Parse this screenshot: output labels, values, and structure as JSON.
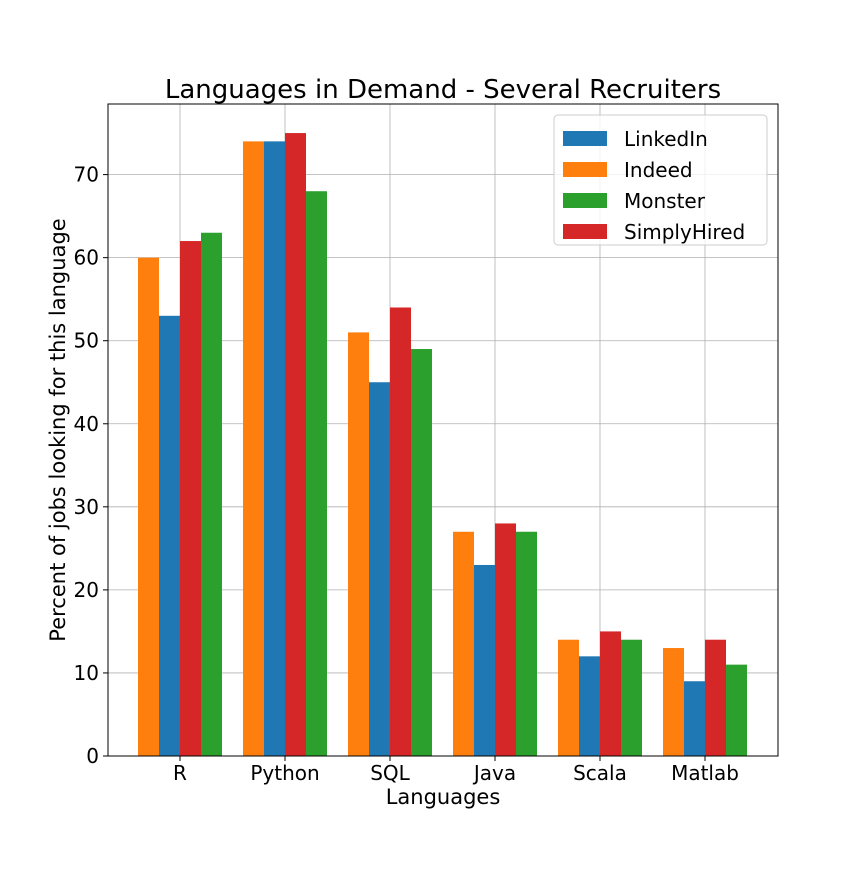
{
  "chart_data": {
    "type": "bar",
    "title": "Languages in Demand - Several Recruiters",
    "xlabel": "Languages",
    "ylabel": "Percent of jobs looking for this language",
    "categories": [
      "R",
      "Python",
      "SQL",
      "Java",
      "Scala",
      "Matlab"
    ],
    "series": [
      {
        "name": "Indeed",
        "color": "#ff7f0e",
        "values": [
          60,
          74,
          51,
          27,
          14,
          13
        ]
      },
      {
        "name": "LinkedIn",
        "color": "#1f77b4",
        "values": [
          53,
          74,
          45,
          23,
          12,
          9
        ]
      },
      {
        "name": "SimplyHired",
        "color": "#d62728",
        "values": [
          62,
          75,
          54,
          28,
          15,
          14
        ]
      },
      {
        "name": "Monster",
        "color": "#2ca02c",
        "values": [
          63,
          68,
          49,
          27,
          14,
          11
        ]
      }
    ],
    "legend_order": [
      "LinkedIn",
      "Indeed",
      "Monster",
      "SimplyHired"
    ],
    "legend_position": "top-right",
    "yticks": [
      0,
      10,
      20,
      30,
      40,
      50,
      60,
      70
    ],
    "ylim": [
      0,
      78.5
    ],
    "grid": true
  }
}
